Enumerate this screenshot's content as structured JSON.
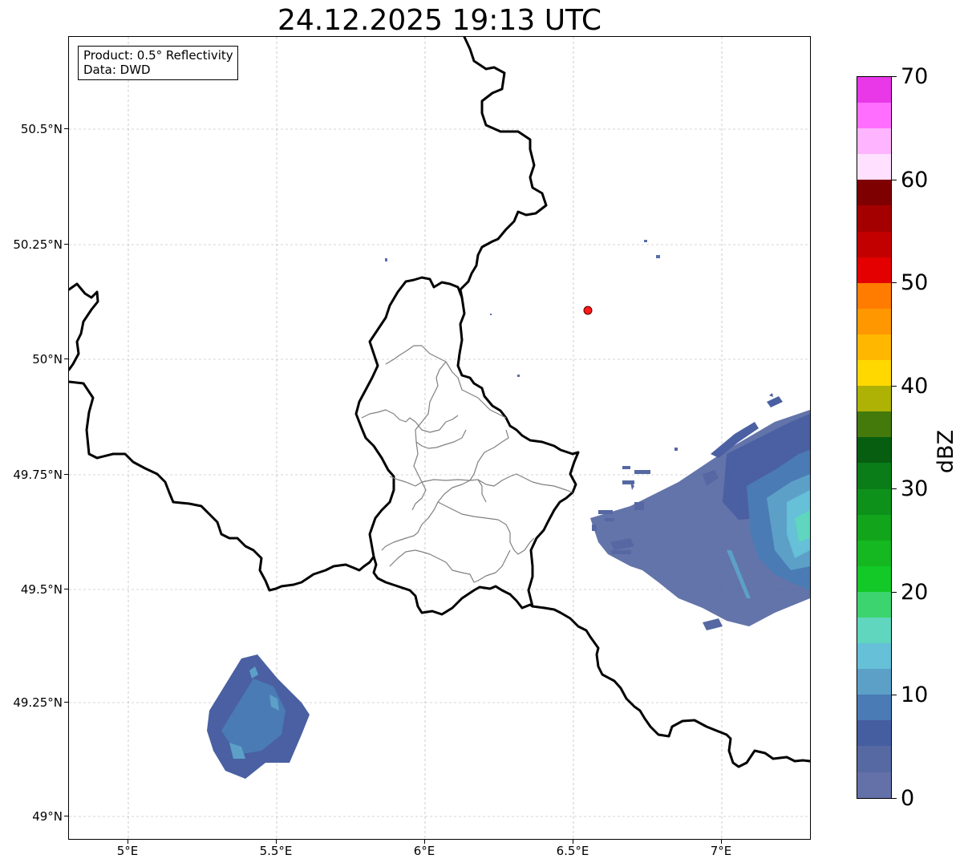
{
  "title": "24.12.2025 19:13 UTC",
  "info": {
    "product": "Product: 0.5° Reflectivity",
    "data": "Data: DWD"
  },
  "axes": {
    "lon_ticks": [
      "5°E",
      "5.5°E",
      "6°E",
      "6.5°E",
      "7°E"
    ],
    "lat_ticks": [
      "50.5°N",
      "50.25°N",
      "50°N",
      "49.75°N",
      "49.5°N",
      "49.25°N",
      "49°N"
    ]
  },
  "radar_site": {
    "lon": 6.55,
    "lat": 50.11,
    "color": "#ff1a1a"
  },
  "colorbar": {
    "unit": "dBZ",
    "tick_labels": [
      "0",
      "10",
      "20",
      "30",
      "40",
      "50",
      "60",
      "70"
    ],
    "colors": [
      "#6470a8",
      "#5669a3",
      "#455ea0",
      "#4a7bb4",
      "#5ca0c8",
      "#65c0d8",
      "#5fd6bd",
      "#3cd46e",
      "#12c927",
      "#15b821",
      "#12a51b",
      "#0e911a",
      "#0a7d18",
      "#075e10",
      "#447a0c",
      "#aeb205",
      "#ffd800",
      "#ffb700",
      "#ff9800",
      "#ff7c00",
      "#e40000",
      "#c30000",
      "#a40000",
      "#7f0000",
      "#ffe0ff",
      "#ffb4ff",
      "#ff6eff",
      "#e838e8"
    ]
  }
}
